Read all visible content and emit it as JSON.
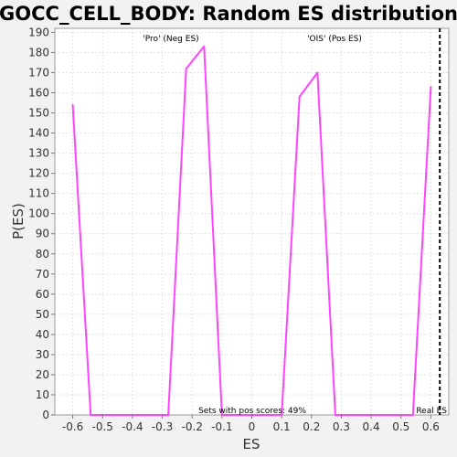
{
  "chart_data": {
    "type": "line",
    "title": "GOCC_CELL_BODY: Random ES distribution",
    "xlabel": "ES",
    "ylabel": "P(ES)",
    "xlim": [
      -0.66,
      0.66
    ],
    "ylim": [
      0,
      192
    ],
    "xticks": [
      -0.6,
      -0.5,
      -0.4,
      -0.3,
      -0.2,
      -0.1,
      0,
      0.1,
      0.2,
      0.3,
      0.4,
      0.5,
      0.6
    ],
    "xtick_labels": [
      "-0.6",
      "-0.5",
      "-0.4",
      "-0.3",
      "-0.2",
      "-0.1",
      "0",
      "0.1",
      "0.2",
      "0.3",
      "0.4",
      "0.5",
      "0.6"
    ],
    "yticks": [
      0,
      10,
      20,
      30,
      40,
      50,
      60,
      70,
      80,
      90,
      100,
      110,
      120,
      130,
      140,
      150,
      160,
      170,
      180,
      190
    ],
    "grid": true,
    "series": [
      {
        "color": "#ff44ff",
        "x": [
          -0.6,
          -0.54,
          -0.28,
          -0.22,
          -0.16,
          -0.1,
          0.1,
          0.16,
          0.22,
          0.28,
          0.54,
          0.6
        ],
        "y": [
          154,
          0,
          0,
          172,
          183,
          0,
          0,
          158,
          170,
          0,
          0,
          163
        ]
      }
    ],
    "real_es": {
      "x": 0.63,
      "label": "Real ES",
      "color": "#000000"
    },
    "annotations": {
      "neg": {
        "text": "'Pro' (Neg ES)",
        "color": "#2222cc"
      },
      "pos": {
        "text": "'OIS' (Pos ES)",
        "color": "#dd2222"
      },
      "footer": {
        "text": "Sets with pos scores: 49%",
        "color": "#000000"
      }
    }
  }
}
